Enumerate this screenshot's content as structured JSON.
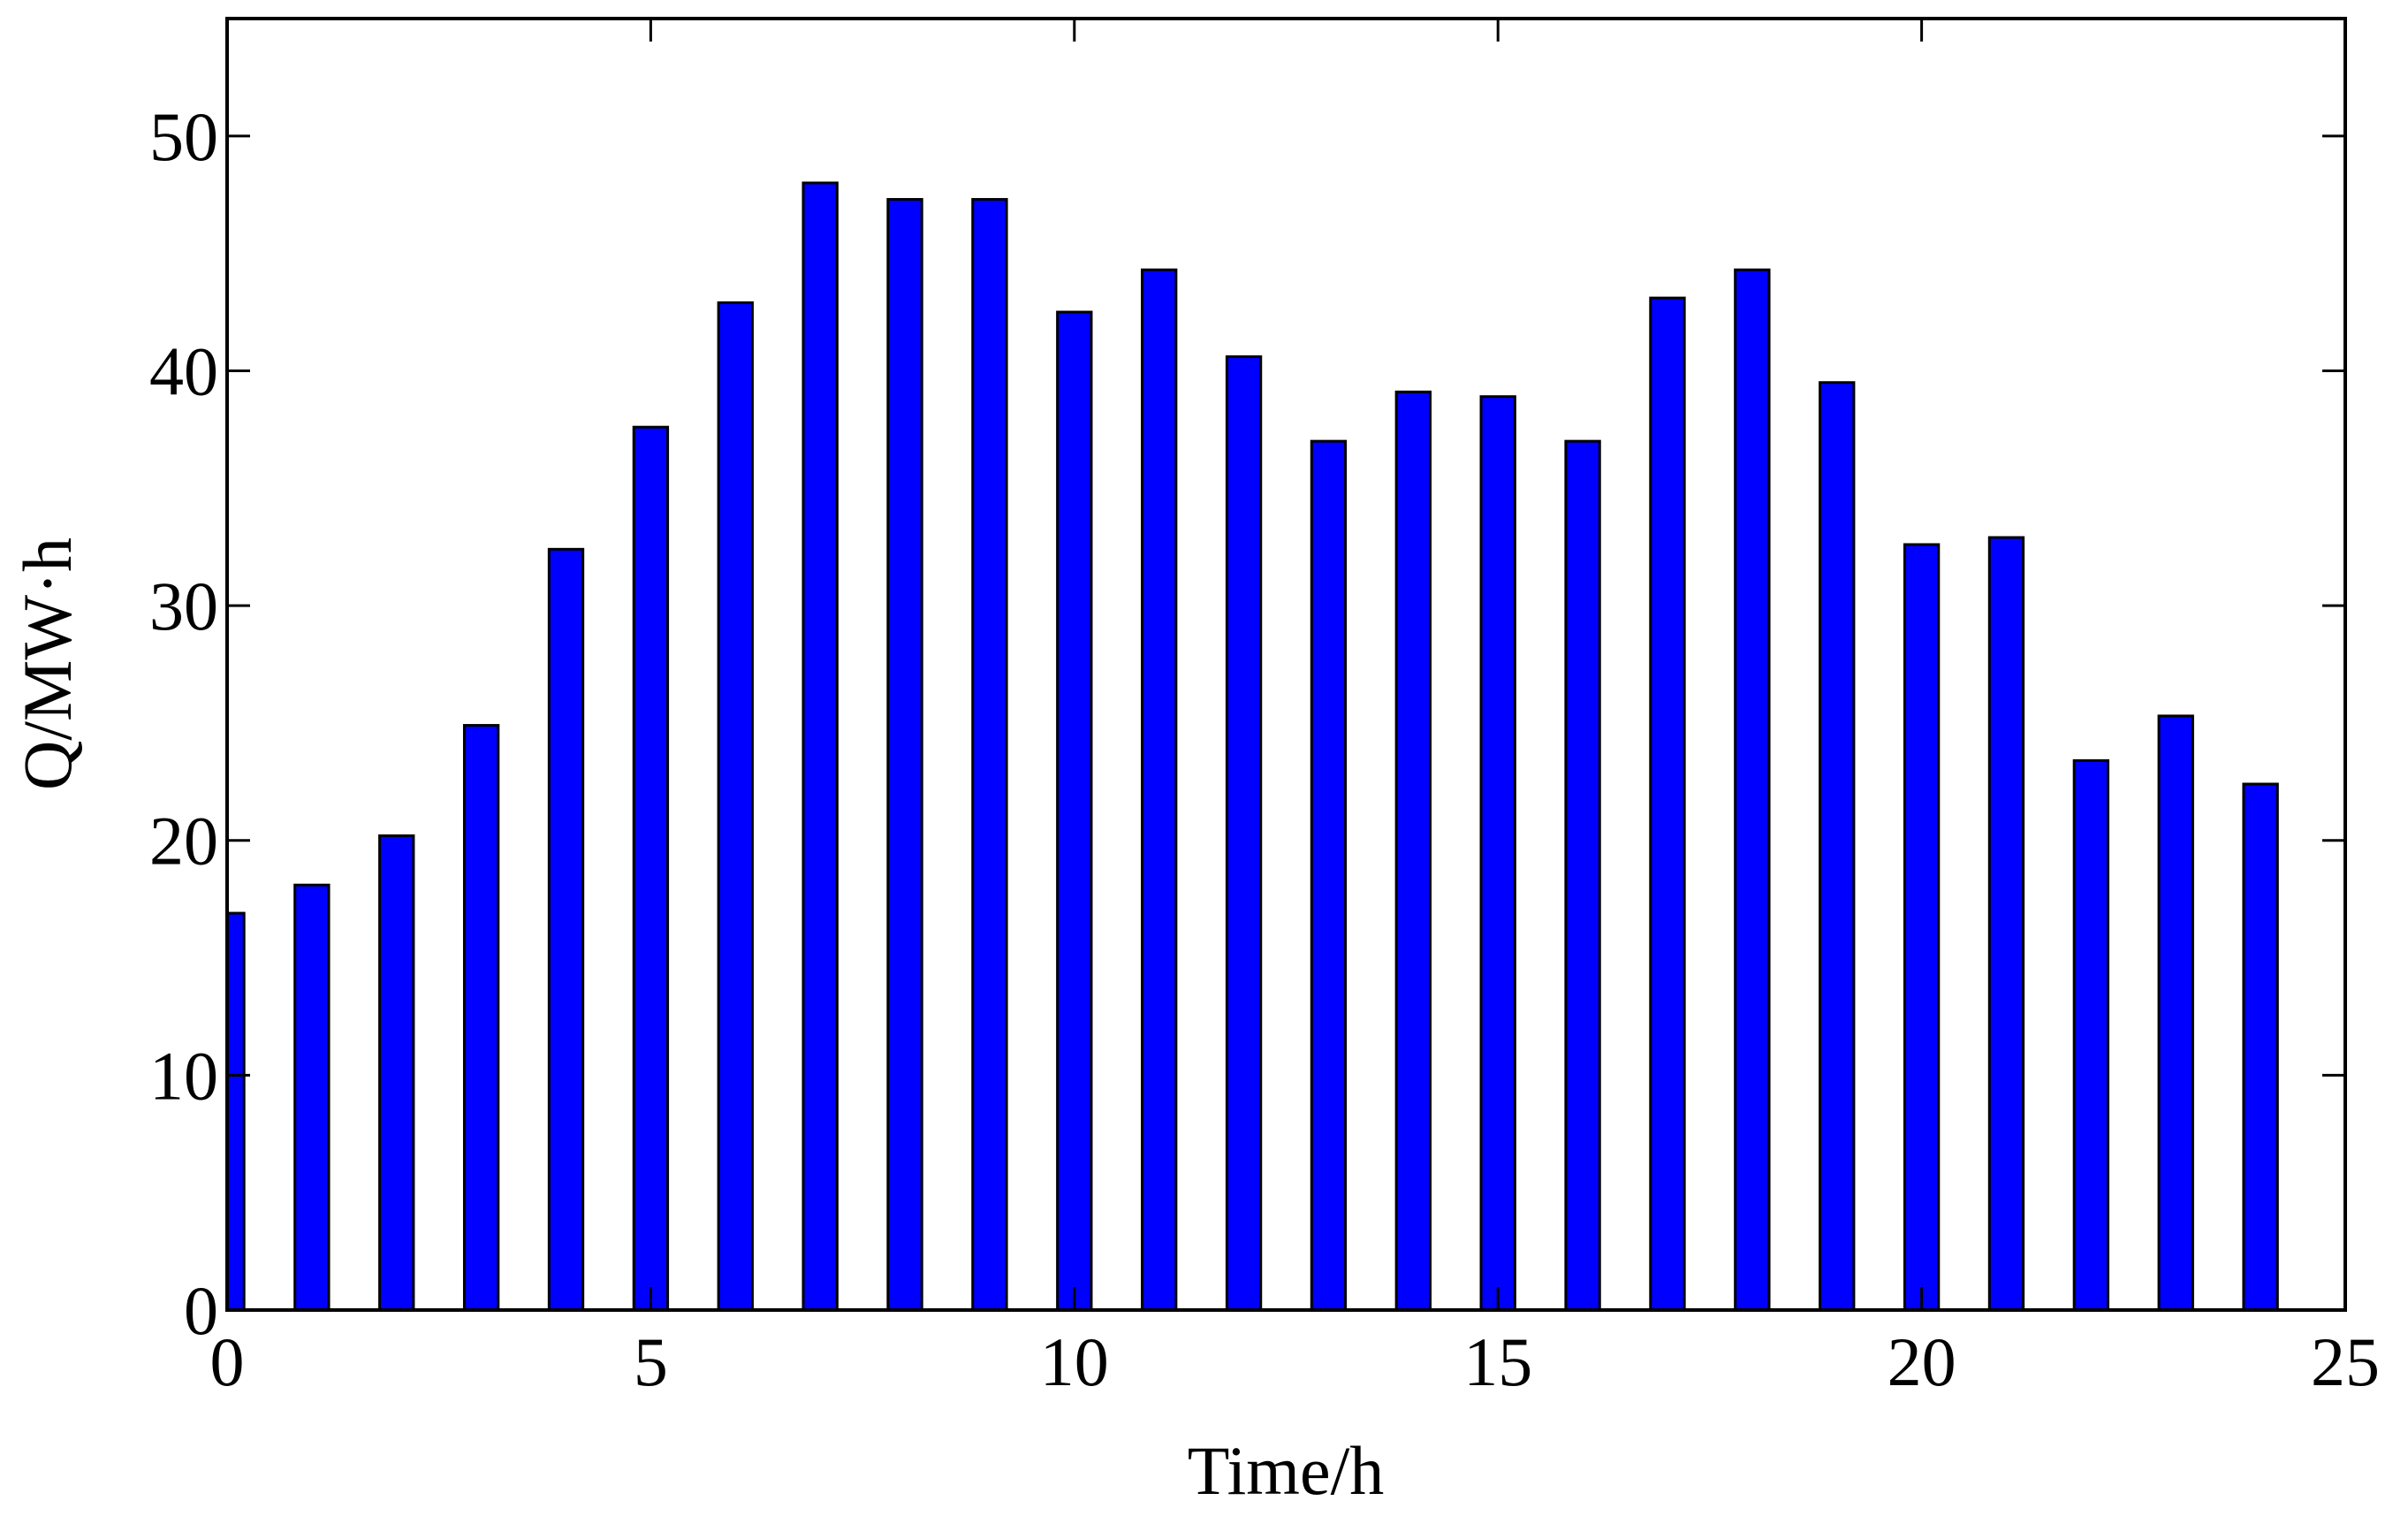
{
  "chart_data": {
    "type": "bar",
    "x": [
      0,
      1,
      2,
      3,
      4,
      5,
      6,
      7,
      8,
      9,
      10,
      11,
      12,
      13,
      14,
      15,
      16,
      17,
      18,
      19,
      20,
      21,
      22,
      23,
      24
    ],
    "values": [
      16.9,
      18.1,
      20.2,
      24.9,
      32.4,
      37.6,
      42.9,
      48.0,
      47.3,
      47.3,
      42.5,
      44.3,
      40.6,
      37.0,
      39.1,
      38.9,
      37.0,
      43.1,
      44.3,
      39.5,
      32.6,
      32.9,
      23.4,
      25.3,
      22.4
    ],
    "color": "#0000ff",
    "xlabel": "Time/h",
    "ylabel": "Q/MW·h",
    "xlim": [
      0,
      25
    ],
    "xticks": [
      0,
      5,
      10,
      15,
      20,
      25
    ],
    "ylim": [
      0,
      55
    ],
    "yticks": [
      0,
      10,
      20,
      30,
      40,
      50
    ],
    "grid": false
  }
}
